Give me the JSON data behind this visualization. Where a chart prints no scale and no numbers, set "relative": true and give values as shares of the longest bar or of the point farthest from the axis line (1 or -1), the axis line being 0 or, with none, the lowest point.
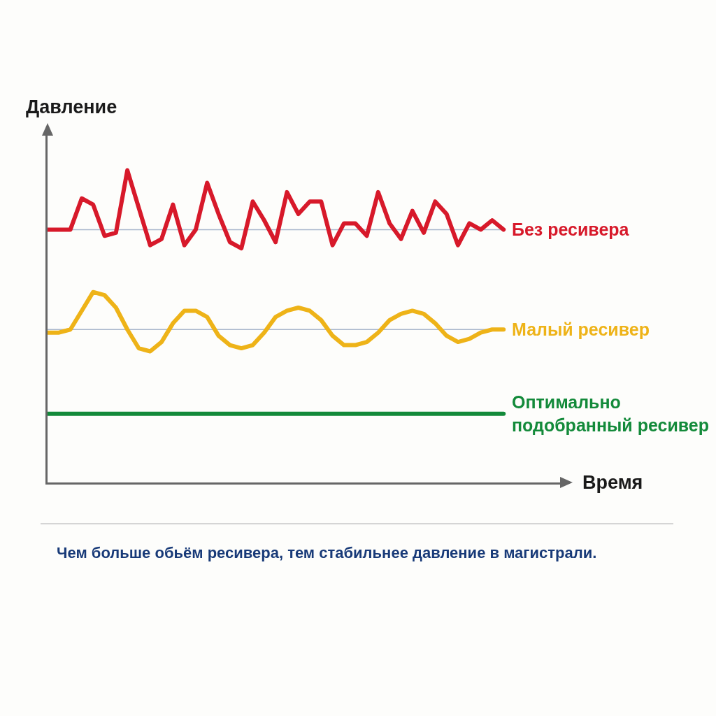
{
  "chart_data": {
    "type": "line",
    "relative": true,
    "xlabel": "Время",
    "ylabel": "Давление",
    "legend": false,
    "grid": false,
    "marker": "none",
    "line_style": "solid",
    "categories": [
      null,
      null,
      null,
      null,
      null,
      null,
      null,
      null,
      null,
      null,
      null,
      null,
      null,
      null,
      null,
      null,
      null,
      null,
      null,
      null,
      null,
      null,
      null,
      null,
      null,
      null,
      null,
      null,
      null,
      null,
      null,
      null,
      null,
      null,
      null,
      null,
      null,
      null,
      null,
      null,
      null
    ],
    "series": [
      {
        "name": "Без ресивера",
        "color": "#d7192a",
        "values": [
          0.81,
          0.81,
          0.81,
          0.91,
          0.89,
          0.79,
          0.8,
          1.0,
          0.88,
          0.76,
          0.78,
          0.89,
          0.76,
          0.81,
          0.96,
          0.86,
          0.77,
          0.75,
          0.9,
          0.84,
          0.77,
          0.93,
          0.86,
          0.9,
          0.9,
          0.76,
          0.83,
          0.83,
          0.79,
          0.93,
          0.83,
          0.78,
          0.87,
          0.8,
          0.9,
          0.86,
          0.76,
          0.83,
          0.81,
          0.84,
          0.81
        ]
      },
      {
        "name": "Малый ресивер",
        "color": "#eeb318",
        "values": [
          0.48,
          0.48,
          0.49,
          0.55,
          0.61,
          0.6,
          0.56,
          0.49,
          0.43,
          0.42,
          0.45,
          0.51,
          0.55,
          0.55,
          0.53,
          0.47,
          0.44,
          0.43,
          0.44,
          0.48,
          0.53,
          0.55,
          0.56,
          0.55,
          0.52,
          0.47,
          0.44,
          0.44,
          0.45,
          0.48,
          0.52,
          0.54,
          0.55,
          0.54,
          0.51,
          0.47,
          0.45,
          0.46,
          0.48,
          0.49,
          0.49
        ]
      },
      {
        "name": "Оптимально подобранный ресивер",
        "color": "#138a3a",
        "values": [
          0.22,
          0.22,
          0.22,
          0.22,
          0.22,
          0.22,
          0.22,
          0.22,
          0.22,
          0.22,
          0.22,
          0.22,
          0.22,
          0.22,
          0.22,
          0.22,
          0.22,
          0.22,
          0.22,
          0.22,
          0.22,
          0.22,
          0.22,
          0.22,
          0.22,
          0.22,
          0.22,
          0.22,
          0.22,
          0.22,
          0.22,
          0.22,
          0.22,
          0.22,
          0.22,
          0.22,
          0.22,
          0.22,
          0.22,
          0.22,
          0.22
        ]
      }
    ],
    "ref_lines": [
      {
        "axis": "y",
        "value": 0.81,
        "color": "#a9b7cc"
      },
      {
        "axis": "y",
        "value": 0.49,
        "color": "#a9b7cc"
      }
    ],
    "annotations": [
      "Чем больше обьём ресивера, тем стабильнее давление в магистрали."
    ]
  }
}
